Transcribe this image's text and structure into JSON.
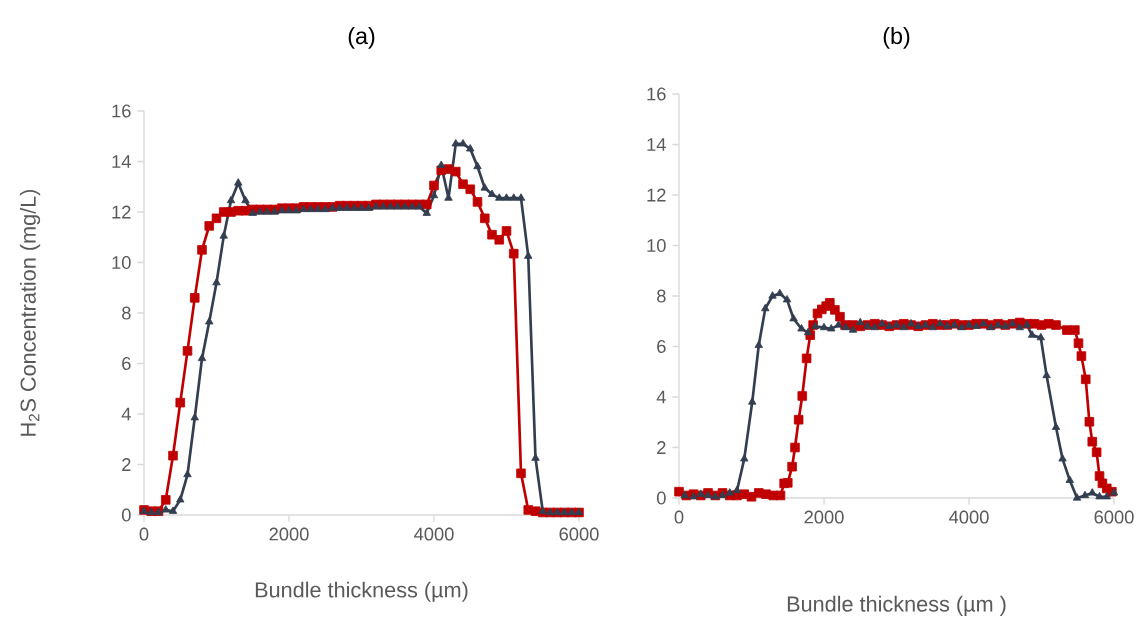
{
  "chart_data": [
    {
      "type": "line",
      "title": "(a)",
      "xlabel": "Bundle thickness (µm)",
      "ylabel": "H$_{2}$S Concentration (mg/L)",
      "xlim": [
        0,
        6000
      ],
      "ylim": [
        0,
        16
      ],
      "xticks": [
        0,
        2000,
        4000,
        6000
      ],
      "yticks": [
        0,
        2,
        4,
        6,
        8,
        10,
        12,
        14,
        16
      ],
      "line_style": "solid",
      "series": [
        {
          "color": "#c00000",
          "marker": "square",
          "x": [
            0,
            100,
            200,
            300,
            400,
            500,
            600,
            700,
            800,
            900,
            1000,
            1100,
            1200,
            1300,
            1400,
            1500,
            1600,
            1700,
            1800,
            1900,
            2000,
            2100,
            2200,
            2300,
            2400,
            2500,
            2600,
            2700,
            2800,
            2900,
            3000,
            3100,
            3200,
            3300,
            3400,
            3500,
            3600,
            3700,
            3800,
            3900,
            4000,
            4100,
            4200,
            4300,
            4400,
            4500,
            4600,
            4700,
            4800,
            4900,
            5000,
            5100,
            5200,
            5300,
            5400,
            5500,
            5600,
            5700,
            5800,
            5900,
            6000
          ],
          "values": [
            0.2,
            0.15,
            0.15,
            0.6,
            2.35,
            4.45,
            6.5,
            8.6,
            10.5,
            11.45,
            11.75,
            12.0,
            12.0,
            12.05,
            12.05,
            12.1,
            12.1,
            12.1,
            12.1,
            12.15,
            12.15,
            12.15,
            12.2,
            12.2,
            12.2,
            12.2,
            12.2,
            12.25,
            12.25,
            12.25,
            12.25,
            12.25,
            12.3,
            12.3,
            12.3,
            12.3,
            12.3,
            12.3,
            12.3,
            12.3,
            13.05,
            13.65,
            13.7,
            13.6,
            13.1,
            12.9,
            12.4,
            11.75,
            11.1,
            10.9,
            11.25,
            10.35,
            1.65,
            0.2,
            0.15,
            0.1,
            0.1,
            0.1,
            0.1,
            0.1,
            0.1
          ]
        },
        {
          "color": "#333f50",
          "marker": "triangle",
          "x": [
            0,
            100,
            200,
            300,
            400,
            500,
            600,
            700,
            800,
            900,
            1000,
            1100,
            1200,
            1300,
            1400,
            1500,
            1600,
            1700,
            1800,
            1900,
            2000,
            2100,
            2200,
            2300,
            2400,
            2500,
            2600,
            2700,
            2800,
            2900,
            3000,
            3100,
            3200,
            3300,
            3400,
            3500,
            3600,
            3700,
            3800,
            3900,
            4000,
            4100,
            4200,
            4300,
            4400,
            4500,
            4600,
            4700,
            4800,
            4900,
            5000,
            5100,
            5200,
            5300,
            5400,
            5500,
            5600,
            5700,
            5800,
            5900,
            6000
          ],
          "values": [
            0.15,
            0.1,
            0.1,
            0.2,
            0.15,
            0.6,
            1.6,
            3.85,
            6.2,
            7.65,
            9.2,
            11.05,
            12.45,
            13.15,
            12.45,
            11.95,
            12.0,
            12.0,
            12.0,
            12.05,
            12.05,
            12.05,
            12.1,
            12.1,
            12.1,
            12.1,
            12.15,
            12.15,
            12.15,
            12.15,
            12.15,
            12.15,
            12.2,
            12.2,
            12.2,
            12.2,
            12.2,
            12.2,
            12.2,
            11.95,
            12.65,
            13.85,
            12.55,
            14.7,
            14.7,
            14.5,
            13.8,
            12.95,
            12.7,
            12.55,
            12.55,
            12.55,
            12.55,
            10.25,
            2.25,
            0.15,
            0.1,
            0.1,
            0.1,
            0.1,
            0.1
          ]
        }
      ]
    },
    {
      "type": "line",
      "title": "(b)",
      "xlabel": "Bundle thickness (µm )",
      "xlim": [
        0,
        6000
      ],
      "ylim": [
        0,
        16
      ],
      "xticks": [
        0,
        2000,
        4000,
        6000
      ],
      "yticks": [
        0,
        2,
        4,
        6,
        8,
        10,
        12,
        14,
        16
      ],
      "line_style": "solid",
      "series": [
        {
          "color": "#c00000",
          "marker": "square",
          "x": [
            0,
            100,
            200,
            300,
            400,
            500,
            600,
            700,
            800,
            900,
            1000,
            1100,
            1200,
            1300,
            1400,
            1450,
            1500,
            1560,
            1600,
            1650,
            1700,
            1760,
            1810,
            1850,
            1910,
            1970,
            2030,
            2080,
            2150,
            2220,
            2290,
            2400,
            2500,
            2600,
            2700,
            2800,
            2900,
            3000,
            3100,
            3200,
            3300,
            3400,
            3500,
            3600,
            3700,
            3800,
            3900,
            4000,
            4100,
            4200,
            4300,
            4400,
            4500,
            4600,
            4700,
            4800,
            4900,
            5000,
            5100,
            5200,
            5350,
            5460,
            5510,
            5550,
            5610,
            5660,
            5700,
            5760,
            5800,
            5840,
            5900,
            5970
          ],
          "values": [
            0.25,
            0.1,
            0.15,
            0.1,
            0.2,
            0.1,
            0.2,
            0.1,
            0.1,
            0.15,
            0.05,
            0.2,
            0.15,
            0.1,
            0.1,
            0.58,
            0.6,
            1.24,
            2.0,
            3.1,
            4.04,
            5.53,
            6.45,
            6.85,
            7.31,
            7.47,
            7.6,
            7.73,
            7.45,
            7.18,
            6.85,
            6.85,
            6.8,
            6.85,
            6.9,
            6.85,
            6.8,
            6.85,
            6.9,
            6.85,
            6.8,
            6.85,
            6.9,
            6.85,
            6.85,
            6.9,
            6.85,
            6.85,
            6.9,
            6.9,
            6.85,
            6.9,
            6.85,
            6.9,
            6.95,
            6.9,
            6.9,
            6.85,
            6.9,
            6.85,
            6.65,
            6.65,
            6.13,
            5.62,
            4.7,
            3.02,
            2.23,
            1.81,
            0.87,
            0.58,
            0.38,
            0.25
          ]
        },
        {
          "color": "#333f50",
          "marker": "triangle",
          "x": [
            80,
            200,
            300,
            400,
            500,
            600,
            700,
            800,
            900,
            1010,
            1100,
            1190,
            1290,
            1390,
            1490,
            1580,
            1690,
            1780,
            1880,
            2000,
            2100,
            2200,
            2300,
            2400,
            2500,
            2600,
            2700,
            2800,
            2900,
            3000,
            3100,
            3200,
            3300,
            3400,
            3500,
            3600,
            3700,
            3800,
            3900,
            4000,
            4100,
            4200,
            4300,
            4400,
            4500,
            4600,
            4700,
            4800,
            4870,
            4990,
            5070,
            5200,
            5290,
            5390,
            5490,
            5600,
            5700,
            5800,
            5900,
            6000
          ],
          "values": [
            0.1,
            0.05,
            0.15,
            0.1,
            0.05,
            0.1,
            0.2,
            0.3,
            1.55,
            3.8,
            6.05,
            7.5,
            8.0,
            8.1,
            7.85,
            7.1,
            6.7,
            6.55,
            6.8,
            6.75,
            6.7,
            6.85,
            6.75,
            6.65,
            6.95,
            6.8,
            6.75,
            6.9,
            6.8,
            6.85,
            6.75,
            6.9,
            6.8,
            6.85,
            6.75,
            6.9,
            6.8,
            6.85,
            6.75,
            6.85,
            6.8,
            6.9,
            6.75,
            6.85,
            6.8,
            6.9,
            6.75,
            6.85,
            6.45,
            6.35,
            4.85,
            2.8,
            1.55,
            0.7,
            0.0,
            0.1,
            0.2,
            0.05,
            0.05,
            0.2
          ]
        }
      ]
    }
  ]
}
